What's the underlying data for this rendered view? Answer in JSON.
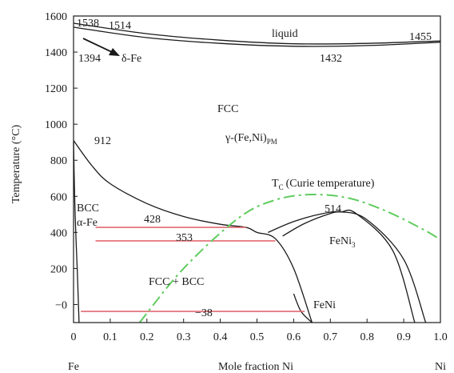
{
  "chart_data": {
    "type": "line",
    "xlabel": "Mole fraction Ni",
    "ylabel": "Temperature (°C)",
    "xlim": [
      0,
      1
    ],
    "ylim": [
      -100,
      1600
    ],
    "grid": false,
    "x_ticks": [
      "0",
      "0.1",
      "0.2",
      "0.3",
      "0.4",
      "0.5",
      "0.6",
      "0.7",
      "0.8",
      "0.9",
      "1.0"
    ],
    "y_ticks": [
      "−0",
      "200",
      "400",
      "600",
      "800",
      "1000",
      "1200",
      "1400",
      "1600"
    ],
    "end_labels": {
      "left": "Fe",
      "right": "Ni"
    },
    "colors": {
      "phase_boundary": "#1a1a1a",
      "isotherm": "#e06a70",
      "curie": "#5fcc5f"
    },
    "annotations": {
      "t1538": "1538",
      "t1514": "1514",
      "liquid": "liquid",
      "t1455": "1455",
      "t1394": "1394",
      "delta_fe": "δ-Fe",
      "t1432": "1432",
      "fcc": "FCC",
      "gamma_pre": "γ-(Fe,Ni)",
      "gamma_sub": "PM",
      "t912": "912",
      "curie_T": "T",
      "curie_sub": "C",
      "curie_rest": "(Curie temperature)",
      "bcc": "BCC",
      "alpha_fe": "α-Fe",
      "t428": "428",
      "t514": "514",
      "t353": "353",
      "feni3": "FeNi",
      "feni3_sub": "3",
      "fcc_bcc": "FCC + BCC",
      "t_minus38": "−38",
      "feni": "FeNi"
    },
    "series": [
      {
        "values": [
          [
            0,
            1538
          ],
          [
            0.2,
            1480
          ],
          [
            0.4,
            1448
          ],
          [
            0.6,
            1432
          ],
          [
            0.8,
            1436
          ],
          [
            1.0,
            1455
          ]
        ]
      },
      {
        "values": [
          [
            0,
            1560
          ],
          [
            0.2,
            1502
          ],
          [
            0.4,
            1466
          ],
          [
            0.6,
            1446
          ],
          [
            0.8,
            1448
          ],
          [
            1.0,
            1462
          ]
        ]
      },
      {
        "values": [
          [
            0,
            910
          ],
          [
            0.05,
            770
          ],
          [
            0.1,
            670
          ],
          [
            0.2,
            560
          ],
          [
            0.3,
            488
          ],
          [
            0.4,
            445
          ],
          [
            0.47,
            428
          ],
          [
            0.5,
            400
          ],
          [
            0.55,
            365
          ],
          [
            0.6,
            200
          ],
          [
            0.65,
            -100
          ]
        ]
      },
      {
        "values": [
          [
            0,
            900
          ],
          [
            0.003,
            600
          ],
          [
            0.006,
            400
          ],
          [
            0.01,
            200
          ],
          [
            0.015,
            -100
          ]
        ]
      },
      {
        "values": [
          [
            0.53,
            400
          ],
          [
            0.6,
            460
          ],
          [
            0.67,
            500
          ],
          [
            0.73,
            514
          ],
          [
            0.8,
            470
          ],
          [
            0.9,
            250
          ],
          [
            0.96,
            -100
          ]
        ]
      },
      {
        "values": [
          [
            0.57,
            380
          ],
          [
            0.63,
            450
          ],
          [
            0.7,
            505
          ],
          [
            0.73,
            514
          ],
          [
            0.77,
            505
          ],
          [
            0.87,
            300
          ],
          [
            0.93,
            -100
          ]
        ]
      },
      {
        "values": [
          [
            0.6,
            60
          ],
          [
            0.62,
            -38
          ],
          [
            0.65,
            -100
          ]
        ]
      }
    ],
    "isotherms": [
      {
        "temp": 428,
        "x": [
          0.06,
          0.47
        ]
      },
      {
        "temp": 353,
        "x": [
          0.06,
          0.55
        ]
      },
      {
        "temp": -38,
        "x": [
          0.02,
          0.63
        ]
      }
    ],
    "curie_line": [
      [
        0.18,
        -100
      ],
      [
        0.3,
        200
      ],
      [
        0.45,
        480
      ],
      [
        0.55,
        580
      ],
      [
        0.65,
        610
      ],
      [
        0.75,
        590
      ],
      [
        0.85,
        520
      ],
      [
        0.95,
        420
      ],
      [
        1.0,
        360
      ]
    ]
  }
}
